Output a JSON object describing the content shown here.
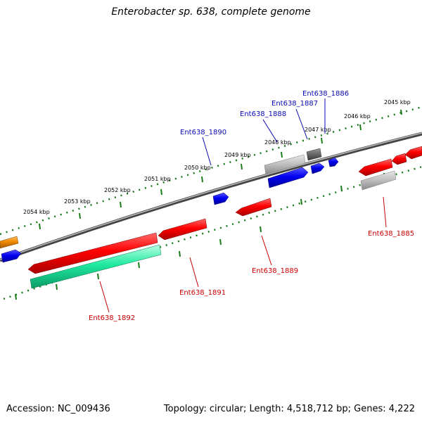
{
  "title": "Enterobacter sp. 638, complete genome",
  "footer": {
    "accession": "Accession: NC_009436",
    "summary": "Topology: circular; Length: 4,518,712 bp; Genes: 4,222"
  },
  "colors": {
    "red": "#e00000",
    "blue": "#0000e0",
    "gray": "#b8b8b8",
    "dark_gray": "#6a6a6a",
    "teal": "#20e8a0",
    "orange": "#f08a00",
    "tick_green": "#1a7a1a",
    "label_blue": "#0a0ab4",
    "label_red": "#c80000"
  },
  "scale_labels": [
    "2045 kbp",
    "2046 kbp",
    "2047 kbp",
    "2048 kbp",
    "2049 kbp",
    "2050 kbp",
    "2051 kbp",
    "2052 kbp",
    "2053 kbp",
    "2054 kbp"
  ],
  "gene_labels": {
    "ent_1886": "Ent638_1886",
    "ent_1887": "Ent638_1887",
    "ent_1888": "Ent638_1888",
    "ent_1890": "Ent638_1890",
    "ent_1885": "Ent638_1885",
    "ent_1889": "Ent638_1889",
    "ent_1891": "Ent638_1891",
    "ent_1892": "Ent638_1892"
  }
}
